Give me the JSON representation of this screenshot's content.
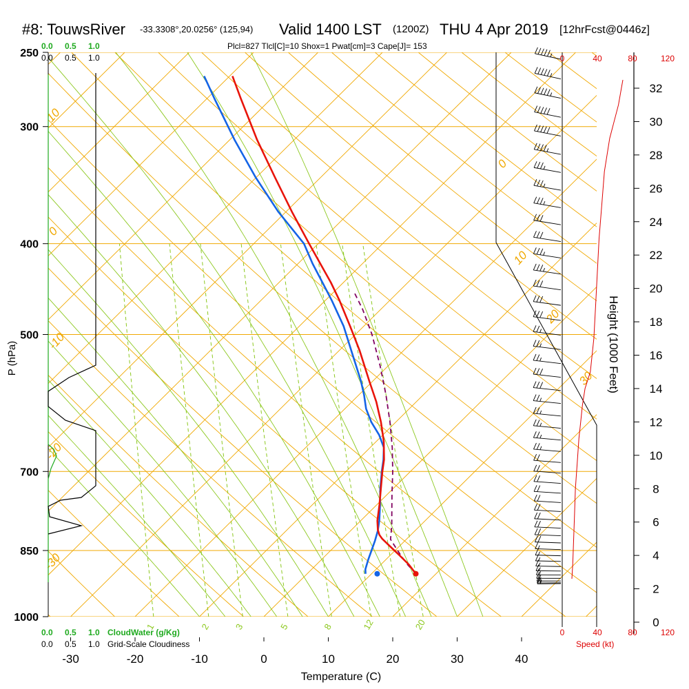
{
  "header": {
    "station": "#8: TouwsRiver",
    "coords": "-33.3308°,20.0256° (125,94)",
    "valid": "Valid 1400 LST",
    "zulu": "(1200Z)",
    "date": "THU 4 Apr 2019",
    "forecast": "[12hrFcst@0446z]"
  },
  "parcel_info": "Plcl=827 Tlcl[C]=10 Shox=1 Pwat[cm]=3 Cape[J]= 153",
  "bottom_strip": {
    "cloud_scale": [
      "0.0",
      "0.5",
      "1.0"
    ],
    "cloud_label": "CloudWater (g/Kg)",
    "cover_scale": [
      "0.0",
      "0.5",
      "1.0"
    ],
    "cover_label": "Grid-Scale Cloudiness"
  },
  "wind_scale": {
    "ticks": [
      "0",
      "40",
      "80",
      "120"
    ],
    "label": "Speed (kt)"
  },
  "colors": {
    "isotherm": "#f0a800",
    "dry_adiabat": "#f0a800",
    "moist_adiabat": "#8cc81e",
    "mixing_ratio": "#8cc81e",
    "temperature": "#e8140a",
    "dewpoint": "#1464e6",
    "parcel": "#800060",
    "cloud": "#1faa1f",
    "wind_speed": "#dd0000",
    "info": "#8b0057"
  },
  "chart_data": {
    "type": "skew-t",
    "title": "#8: TouwsRiver Valid 1400 LST (1200Z) THU 4 Apr 2019",
    "xlabel": "Temperature (C)",
    "ylabel": "P (hPa)",
    "y2label": "Height (1000 Feet)",
    "temp_ticks": [
      -30,
      -20,
      -10,
      0,
      10,
      20,
      30,
      40
    ],
    "pressure_ticks": [
      250,
      300,
      400,
      500,
      700,
      850,
      1000
    ],
    "height_ticks": [
      0,
      2,
      4,
      6,
      8,
      10,
      12,
      14,
      16,
      18,
      20,
      22,
      24,
      26,
      28,
      30,
      32
    ],
    "dry_adiabat_labels": [
      "10",
      "0",
      "-10",
      "-20",
      "-30",
      "0",
      "10",
      "20",
      "30"
    ],
    "mixing_ratio_labels": [
      "1",
      "2",
      "3",
      "5",
      "8",
      "12",
      "20"
    ],
    "temperature": {
      "p": [
        900,
        880,
        860,
        840,
        826,
        818,
        808,
        790,
        760,
        730,
        700,
        680,
        650,
        620,
        590,
        560,
        520,
        490,
        460,
        440,
        420,
        400,
        370,
        340,
        310,
        280,
        265
      ],
      "t": [
        23,
        21.8,
        20.2,
        18.5,
        17.3,
        16.8,
        16.5,
        16.3,
        16.4,
        16.4,
        16.4,
        16.5,
        16.2,
        15.5,
        14.5,
        13.1,
        11.2,
        9.4,
        7.4,
        5.8,
        3.9,
        1.9,
        -1.2,
        -4.3,
        -7.6,
        -10.7,
        -12.3
      ]
    },
    "dewpoint": {
      "p": [
        900,
        890,
        870,
        850,
        830,
        810,
        790,
        760,
        730,
        700,
        680,
        660,
        640,
        620,
        600,
        580,
        560,
        520,
        490,
        460,
        440,
        420,
        400,
        370,
        340,
        310,
        280,
        265
      ],
      "t": [
        15.2,
        15.1,
        15.4,
        15.8,
        16.2,
        16.5,
        16.6,
        16.5,
        16.3,
        16.3,
        16.4,
        16.3,
        15.4,
        14.0,
        13.0,
        12.5,
        11.8,
        9.9,
        8.4,
        6.2,
        4.5,
        2.7,
        1.1,
        -3.3,
        -7.3,
        -11.1,
        -14.8,
        -16.7
      ]
    },
    "parcel": {
      "p": [
        900,
        880,
        860,
        840,
        827,
        800,
        770,
        740,
        700,
        660,
        620,
        580,
        540,
        500,
        470,
        450
      ],
      "t": [
        23,
        21.6,
        20.4,
        19.3,
        18.6,
        18.6,
        18.4,
        18.2,
        18.0,
        17.6,
        16.9,
        15.9,
        14.6,
        12.9,
        11.1,
        9.5
      ]
    },
    "wind_speed": {
      "h": [
        2.6,
        3.5,
        5.0,
        6.5,
        8.0,
        9.5,
        11,
        12,
        13,
        14,
        15,
        17,
        19,
        21,
        23,
        25,
        27,
        29,
        31,
        32.5
      ],
      "kt": [
        11,
        12,
        13,
        14,
        15,
        17,
        19,
        21,
        23,
        26,
        32,
        36,
        38,
        40,
        42,
        45,
        48,
        54,
        64,
        69
      ]
    },
    "wind_barbs_kt": [
      15,
      15,
      15,
      15,
      15,
      15,
      15,
      15,
      15,
      15,
      20,
      20,
      20,
      20,
      20,
      20,
      20,
      20,
      20,
      20,
      25,
      25,
      25,
      25,
      25,
      30,
      30,
      25,
      25,
      25,
      30,
      30,
      30,
      35,
      35,
      30,
      30,
      35,
      35,
      35,
      45,
      50,
      50,
      55,
      55,
      55
    ]
  }
}
